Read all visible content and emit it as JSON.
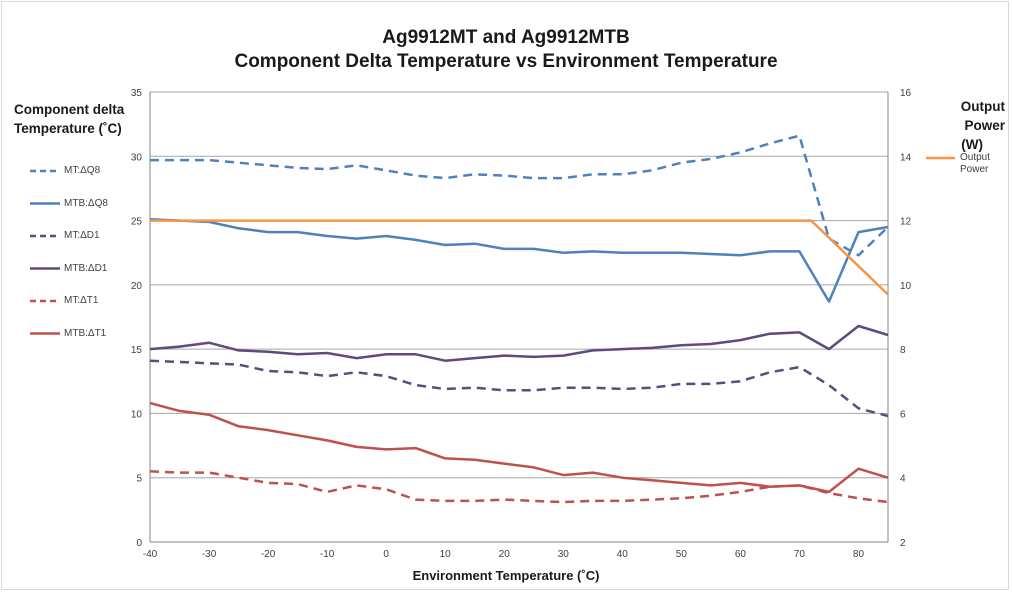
{
  "chart_data": {
    "type": "line",
    "title": "Ag9912MT and Ag9912MTB",
    "subtitle": "Component Delta Temperature vs Environment Temperature",
    "xlabel": "Environment Temperature (˚C)",
    "ylabel_lines": [
      "Component delta",
      "Temperature (˚C)"
    ],
    "y2label_lines": [
      "Output Power",
      "(W)"
    ],
    "xlim": [
      -40,
      85
    ],
    "ylim": [
      0,
      35
    ],
    "y2lim": [
      2,
      16
    ],
    "x_ticks": [
      "-40",
      "-30",
      "-20",
      "-10",
      "0",
      "10",
      "20",
      "30",
      "40",
      "50",
      "60",
      "70",
      "80"
    ],
    "y_ticks": [
      "0",
      "5",
      "10",
      "15",
      "20",
      "25",
      "30",
      "35"
    ],
    "y2_ticks": [
      "2",
      "4",
      "6",
      "8",
      "10",
      "12",
      "14",
      "16"
    ],
    "grid": "horizontal",
    "legend_left": "left",
    "legend_right": "right",
    "x": [
      -40,
      -35,
      -30,
      -25,
      -20,
      -15,
      -10,
      -5,
      0,
      5,
      10,
      15,
      20,
      25,
      30,
      35,
      40,
      45,
      50,
      55,
      60,
      65,
      70,
      75,
      80,
      85
    ],
    "series": [
      {
        "name": "MT:ΔQ8",
        "color": "#4f81bd",
        "dash": true,
        "axis": "left",
        "x": [
          -40,
          -35,
          -30,
          -25,
          -20,
          -15,
          -10,
          -5,
          0,
          5,
          10,
          15,
          20,
          25,
          30,
          35,
          40,
          45,
          50,
          55,
          60,
          65,
          70,
          75,
          80,
          85
        ],
        "values": [
          29.7,
          29.7,
          29.7,
          29.5,
          29.3,
          29.1,
          29.0,
          29.3,
          28.9,
          28.5,
          28.3,
          28.6,
          28.5,
          28.3,
          28.3,
          28.6,
          28.6,
          28.9,
          29.5,
          29.8,
          30.3,
          31.0,
          31.6,
          23.6,
          22.3,
          24.5
        ]
      },
      {
        "name": "MTB:ΔQ8",
        "color": "#4f81bd",
        "dash": false,
        "axis": "left",
        "x": [
          -40,
          -35,
          -30,
          -25,
          -20,
          -15,
          -10,
          -5,
          0,
          5,
          10,
          15,
          20,
          25,
          30,
          35,
          40,
          45,
          50,
          55,
          60,
          65,
          70,
          75,
          80,
          85
        ],
        "values": [
          25.1,
          25.0,
          24.9,
          24.4,
          24.1,
          24.1,
          23.8,
          23.6,
          23.8,
          23.5,
          23.1,
          23.2,
          22.8,
          22.8,
          22.5,
          22.6,
          22.5,
          22.5,
          22.5,
          22.4,
          22.3,
          22.6,
          22.6,
          18.7,
          24.1,
          24.5
        ]
      },
      {
        "name": "MT:ΔD1",
        "color": "#604a7b",
        "dash": true,
        "axis": "left",
        "x": [
          -40,
          -35,
          -30,
          -25,
          -20,
          -15,
          -10,
          -5,
          0,
          5,
          10,
          15,
          20,
          25,
          30,
          35,
          40,
          45,
          50,
          55,
          60,
          65,
          70,
          75,
          80,
          85
        ],
        "values": [
          14.1,
          14.0,
          13.9,
          13.8,
          13.3,
          13.2,
          12.9,
          13.2,
          12.9,
          12.2,
          11.9,
          12.0,
          11.8,
          11.8,
          12.0,
          12.0,
          11.9,
          12.0,
          12.3,
          12.3,
          12.5,
          13.2,
          13.6,
          12.2,
          10.4,
          9.8
        ]
      },
      {
        "name": "MTB:ΔD1",
        "color": "#604a7b",
        "dash": false,
        "axis": "left",
        "x": [
          -40,
          -35,
          -30,
          -25,
          -20,
          -15,
          -10,
          -5,
          0,
          5,
          10,
          15,
          20,
          25,
          30,
          35,
          40,
          45,
          50,
          55,
          60,
          65,
          70,
          75,
          80,
          85
        ],
        "values": [
          15.0,
          15.2,
          15.5,
          14.9,
          14.8,
          14.6,
          14.7,
          14.3,
          14.6,
          14.6,
          14.1,
          14.3,
          14.5,
          14.4,
          14.5,
          14.9,
          15.0,
          15.1,
          15.3,
          15.4,
          15.7,
          16.2,
          16.3,
          15.0,
          16.8,
          16.1
        ]
      },
      {
        "name": "MT:ΔT1",
        "color": "#c0504d",
        "dash": true,
        "axis": "left",
        "x": [
          -40,
          -35,
          -30,
          -25,
          -20,
          -15,
          -10,
          -5,
          0,
          5,
          10,
          15,
          20,
          25,
          30,
          35,
          40,
          45,
          50,
          55,
          60,
          65,
          70,
          75,
          80,
          85
        ],
        "values": [
          5.5,
          5.4,
          5.4,
          5.0,
          4.6,
          4.5,
          3.9,
          4.4,
          4.1,
          3.3,
          3.2,
          3.2,
          3.3,
          3.2,
          3.1,
          3.2,
          3.2,
          3.3,
          3.4,
          3.6,
          3.9,
          4.3,
          4.4,
          3.8,
          3.4,
          3.1
        ]
      },
      {
        "name": "MTB:ΔT1",
        "color": "#c0504d",
        "dash": false,
        "axis": "left",
        "x": [
          -40,
          -35,
          -30,
          -25,
          -20,
          -15,
          -10,
          -5,
          0,
          5,
          10,
          15,
          20,
          25,
          30,
          35,
          40,
          45,
          50,
          55,
          60,
          65,
          70,
          75,
          80,
          85
        ],
        "values": [
          10.8,
          10.2,
          9.9,
          9.0,
          8.7,
          8.3,
          7.9,
          7.4,
          7.2,
          7.3,
          6.5,
          6.4,
          6.1,
          5.8,
          5.2,
          5.4,
          5.0,
          4.8,
          4.6,
          4.4,
          4.6,
          4.3,
          4.4,
          3.9,
          5.7,
          5.0
        ]
      },
      {
        "name": "Output Power",
        "color": "#f79646",
        "dash": false,
        "axis": "right",
        "x": [
          -40,
          72,
          85
        ],
        "values": [
          12.0,
          12.0,
          9.7
        ]
      }
    ]
  }
}
